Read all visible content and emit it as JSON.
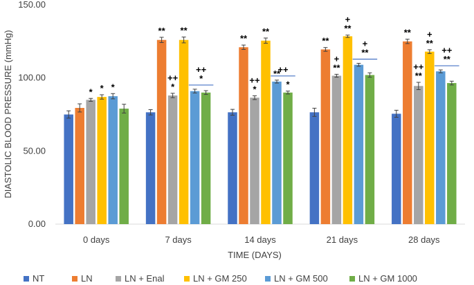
{
  "chart_data": {
    "type": "bar",
    "title": "",
    "xlabel": "TIME (DAYS)",
    "ylabel": "DIASTOLIC BLOOD PRESSURE  (mmHg)",
    "ylim": [
      0,
      150
    ],
    "yticks": [
      0,
      50,
      100,
      150
    ],
    "ytick_labels": [
      "0.00",
      "50.00",
      "100.00",
      "150.00"
    ],
    "grid": false,
    "legend_position": "bottom",
    "categories": [
      "0 days",
      "7 days",
      "14 days",
      "21 days",
      "28 days"
    ],
    "series": [
      {
        "name": "NT",
        "color": "#4472C4",
        "values": [
          75,
          76.5,
          76.5,
          76.5,
          75.5
        ],
        "errors": [
          2.5,
          1.8,
          2.0,
          2.8,
          2.4
        ],
        "annotations": [
          [],
          [],
          [],
          [],
          []
        ]
      },
      {
        "name": "LN",
        "color": "#ED7D31",
        "values": [
          79.5,
          126,
          121,
          119.5,
          125
        ],
        "errors": [
          2.8,
          1.8,
          1.5,
          1.3,
          1.5
        ],
        "annotations": [
          [],
          [
            "**"
          ],
          [
            "**"
          ],
          [
            "**"
          ],
          [
            "**"
          ]
        ]
      },
      {
        "name": "LN + Enal",
        "color": "#A5A5A5",
        "values": [
          85,
          88,
          86.5,
          101.5,
          94.5
        ],
        "errors": [
          1.0,
          1.5,
          1.3,
          1.0,
          2.5
        ],
        "annotations": [
          [
            "*"
          ],
          [
            "++",
            "*"
          ],
          [
            "++",
            "*"
          ],
          [
            "+",
            "**"
          ],
          [
            "++",
            "**"
          ]
        ]
      },
      {
        "name": "LN + GM 250",
        "color": "#FFC000",
        "values": [
          87,
          126,
          125.5,
          128.5,
          118
        ],
        "errors": [
          1.5,
          2.0,
          1.8,
          0.8,
          1.3
        ],
        "annotations": [
          [
            "*"
          ],
          [
            "**"
          ],
          [
            "**"
          ],
          [
            "+",
            "**"
          ],
          [
            "+",
            "**"
          ]
        ]
      },
      {
        "name": "LN + GM 500",
        "color": "#5B9BD5",
        "values": [
          87.5,
          91,
          97.5,
          109,
          104.5
        ],
        "errors": [
          1.8,
          1.3,
          1.0,
          1.0,
          1.0
        ],
        "annotations": [
          [
            "*"
          ],
          [],
          [
            "**"
          ],
          [],
          []
        ]
      },
      {
        "name": "LN + GM 1000",
        "color": "#70AD47",
        "values": [
          79,
          90,
          90,
          102,
          96.5
        ],
        "errors": [
          3.0,
          1.3,
          1.0,
          1.5,
          1.3
        ],
        "annotations": [
          [],
          [],
          [
            "*"
          ],
          [],
          []
        ]
      }
    ],
    "group_annotations": [
      [],
      [
        "++",
        "*"
      ],
      [
        "++"
      ],
      [
        "+",
        "**"
      ],
      [
        "++",
        "**"
      ]
    ],
    "annotation_line_color": "#4472C4"
  }
}
